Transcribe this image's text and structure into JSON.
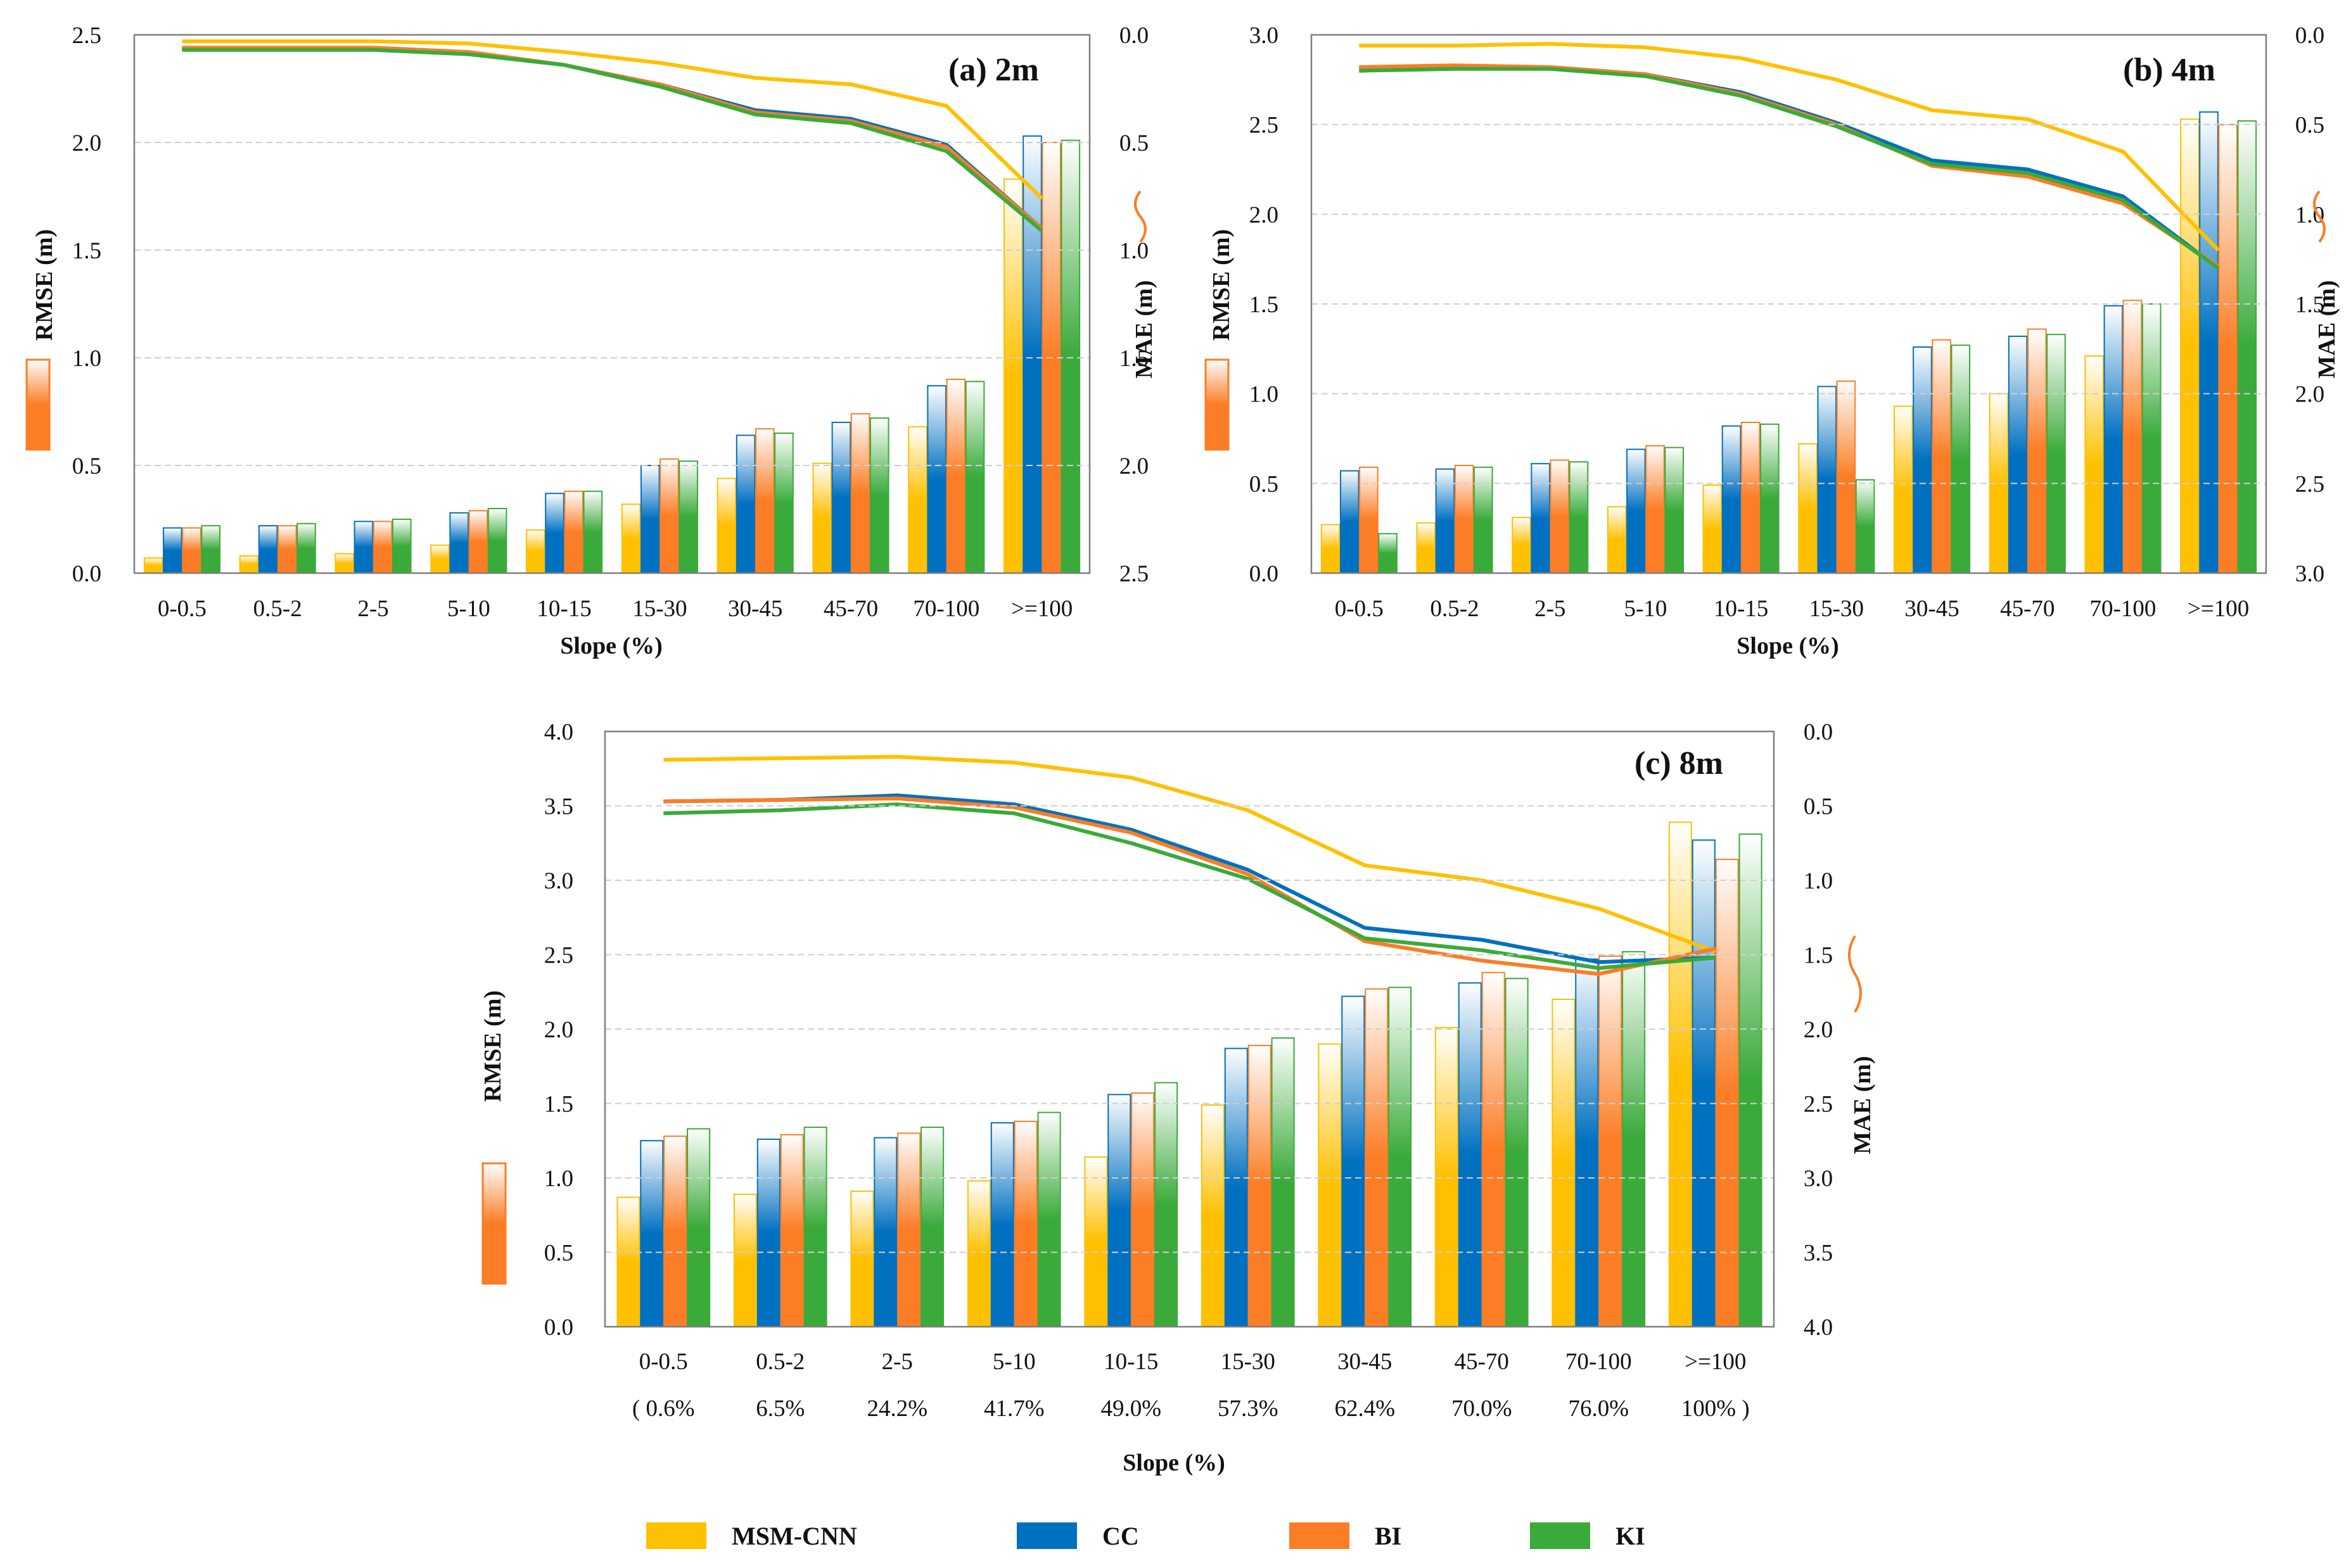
{
  "colors": {
    "MSM-CNN": "#ffc000",
    "CC": "#0070c0",
    "BI": "#fb7d25",
    "KI": "#3aaa3a",
    "grid": "#cfcfcf",
    "axis": "#7f7f7f"
  },
  "legend": [
    {
      "label": "MSM-CNN",
      "key": "MSM-CNN"
    },
    {
      "label": "CC",
      "key": "CC"
    },
    {
      "label": "BI",
      "key": "BI"
    },
    {
      "label": "KI",
      "key": "KI"
    }
  ],
  "chart_data": [
    {
      "type": "bar+line",
      "title": "(a) 2m",
      "xlabel": "Slope (%)",
      "ylabel_left": "RMSE (m)",
      "ylabel_right": "MAE (m)",
      "categories": [
        "0-0.5",
        "0.5-2",
        "2-5",
        "5-10",
        "10-15",
        "15-30",
        "30-45",
        "45-70",
        "70-100",
        ">=100"
      ],
      "ylim_left": [
        0,
        2.5
      ],
      "yticks_left": [
        "0.0",
        "0.5",
        "1.0",
        "1.5",
        "2.0",
        "2.5"
      ],
      "ylim_right": [
        0,
        2.5
      ],
      "yticks_right": [
        "0.0",
        "0.5",
        "1.0",
        "1.5",
        "2.0",
        "2.5"
      ],
      "right_axis_inverted": true,
      "rmse_bars": [
        {
          "name": "MSM-CNN",
          "values": [
            0.07,
            0.08,
            0.09,
            0.13,
            0.2,
            0.32,
            0.44,
            0.51,
            0.68,
            1.83
          ]
        },
        {
          "name": "CC",
          "values": [
            0.21,
            0.22,
            0.24,
            0.28,
            0.37,
            0.5,
            0.64,
            0.7,
            0.87,
            2.03
          ]
        },
        {
          "name": "BI",
          "values": [
            0.21,
            0.22,
            0.24,
            0.29,
            0.38,
            0.53,
            0.67,
            0.74,
            0.9,
            2.0
          ]
        },
        {
          "name": "KI",
          "values": [
            0.22,
            0.23,
            0.25,
            0.3,
            0.38,
            0.52,
            0.65,
            0.72,
            0.89,
            2.01
          ]
        }
      ],
      "mae_lines": [
        {
          "name": "MSM-CNN",
          "values": [
            0.03,
            0.03,
            0.03,
            0.04,
            0.08,
            0.13,
            0.2,
            0.23,
            0.33,
            0.76
          ]
        },
        {
          "name": "CC",
          "values": [
            0.06,
            0.06,
            0.06,
            0.08,
            0.14,
            0.23,
            0.35,
            0.39,
            0.51,
            0.9
          ]
        },
        {
          "name": "BI",
          "values": [
            0.06,
            0.06,
            0.06,
            0.08,
            0.14,
            0.23,
            0.36,
            0.4,
            0.52,
            0.9
          ]
        },
        {
          "name": "KI",
          "values": [
            0.07,
            0.07,
            0.07,
            0.09,
            0.14,
            0.24,
            0.37,
            0.41,
            0.54,
            0.91
          ]
        }
      ],
      "axis_break": "right"
    },
    {
      "type": "bar+line",
      "title": "(b) 4m",
      "xlabel": "Slope (%)",
      "ylabel_left": "RMSE (m)",
      "ylabel_right": "MAE (m)",
      "categories": [
        "0-0.5",
        "0.5-2",
        "2-5",
        "5-10",
        "10-15",
        "15-30",
        "30-45",
        "45-70",
        "70-100",
        ">=100"
      ],
      "ylim_left": [
        0,
        3.0
      ],
      "yticks_left": [
        "0.0",
        "0.5",
        "1.0",
        "1.5",
        "2.0",
        "2.5",
        "3.0"
      ],
      "ylim_right": [
        0,
        3.0
      ],
      "yticks_right": [
        "0.0",
        "0.5",
        "1.0",
        "1.5",
        "2.0",
        "2.5",
        "3.0"
      ],
      "right_axis_inverted": true,
      "rmse_bars": [
        {
          "name": "MSM-CNN",
          "values": [
            0.27,
            0.28,
            0.31,
            0.37,
            0.49,
            0.72,
            0.93,
            1.0,
            1.21,
            2.53
          ]
        },
        {
          "name": "CC",
          "values": [
            0.57,
            0.58,
            0.61,
            0.69,
            0.82,
            1.04,
            1.26,
            1.32,
            1.49,
            2.57
          ]
        },
        {
          "name": "BI",
          "values": [
            0.59,
            0.6,
            0.63,
            0.71,
            0.84,
            1.07,
            1.3,
            1.36,
            1.52,
            2.5
          ]
        },
        {
          "name": "KI",
          "values": [
            0.22,
            0.59,
            0.62,
            0.7,
            0.83,
            0.52,
            1.27,
            1.33,
            1.5,
            2.52
          ]
        }
      ],
      "mae_lines": [
        {
          "name": "MSM-CNN",
          "values": [
            0.06,
            0.06,
            0.05,
            0.07,
            0.13,
            0.25,
            0.42,
            0.47,
            0.65,
            1.2
          ]
        },
        {
          "name": "CC",
          "values": [
            0.18,
            0.18,
            0.18,
            0.22,
            0.32,
            0.49,
            0.7,
            0.75,
            0.9,
            1.3
          ]
        },
        {
          "name": "BI",
          "values": [
            0.18,
            0.17,
            0.18,
            0.22,
            0.33,
            0.5,
            0.73,
            0.79,
            0.94,
            1.29
          ]
        },
        {
          "name": "KI",
          "values": [
            0.2,
            0.19,
            0.19,
            0.23,
            0.34,
            0.51,
            0.72,
            0.77,
            0.92,
            1.3
          ]
        }
      ],
      "axis_break": "right"
    },
    {
      "type": "bar+line",
      "title": "(c) 8m",
      "xlabel": "Slope (%)",
      "ylabel_left": "RMSE (m)",
      "ylabel_right": "MAE (m)",
      "categories": [
        "0-0.5",
        "0.5-2",
        "2-5",
        "5-10",
        "10-15",
        "15-30",
        "30-45",
        "45-70",
        "70-100",
        ">=100"
      ],
      "category_percents": [
        "( 0.6%",
        "6.5%",
        "24.2%",
        "41.7%",
        "49.0%",
        "57.3%",
        "62.4%",
        "70.0%",
        "76.0%",
        "100% )"
      ],
      "ylim_left": [
        0,
        4.0
      ],
      "yticks_left": [
        "0.0",
        "0.5",
        "1.0",
        "1.5",
        "2.0",
        "2.5",
        "3.0",
        "3.5",
        "4.0"
      ],
      "ylim_right": [
        0,
        4.0
      ],
      "yticks_right": [
        "0.0",
        "0.5",
        "1.0",
        "1.5",
        "2.0",
        "2.5",
        "3.0",
        "3.5",
        "4.0"
      ],
      "right_axis_inverted": true,
      "rmse_bars": [
        {
          "name": "MSM-CNN",
          "values": [
            0.87,
            0.89,
            0.91,
            0.98,
            1.14,
            1.49,
            1.9,
            2.01,
            2.2,
            3.39
          ]
        },
        {
          "name": "CC",
          "values": [
            1.25,
            1.26,
            1.27,
            1.37,
            1.56,
            1.87,
            2.22,
            2.31,
            2.47,
            3.27
          ]
        },
        {
          "name": "BI",
          "values": [
            1.28,
            1.29,
            1.3,
            1.38,
            1.57,
            1.89,
            2.27,
            2.38,
            2.49,
            3.14
          ]
        },
        {
          "name": "KI",
          "values": [
            1.33,
            1.34,
            1.34,
            1.44,
            1.64,
            1.94,
            2.28,
            2.34,
            2.52,
            3.31
          ]
        }
      ],
      "mae_lines": [
        {
          "name": "MSM-CNN",
          "values": [
            0.19,
            0.18,
            0.17,
            0.21,
            0.31,
            0.53,
            0.9,
            1.0,
            1.19,
            1.48
          ]
        },
        {
          "name": "CC",
          "values": [
            0.47,
            0.46,
            0.43,
            0.49,
            0.66,
            0.93,
            1.32,
            1.4,
            1.55,
            1.52
          ]
        },
        {
          "name": "BI",
          "values": [
            0.47,
            0.46,
            0.45,
            0.51,
            0.68,
            0.96,
            1.41,
            1.54,
            1.63,
            1.46
          ]
        },
        {
          "name": "KI",
          "values": [
            0.55,
            0.53,
            0.49,
            0.55,
            0.75,
            0.99,
            1.39,
            1.47,
            1.59,
            1.52
          ]
        }
      ],
      "axis_break": "right"
    }
  ]
}
